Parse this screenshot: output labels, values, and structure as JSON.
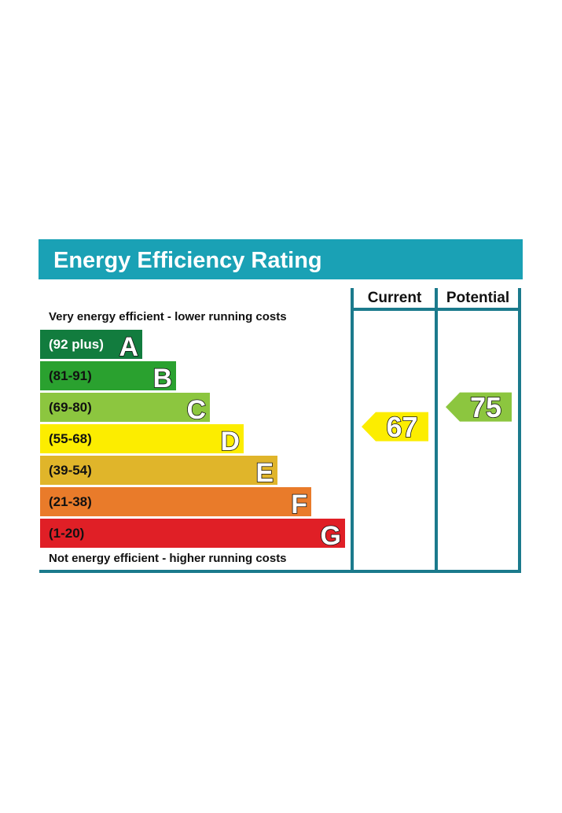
{
  "title": "Energy Efficiency Rating",
  "top_note": "Very energy efficient - lower running costs",
  "bottom_note": "Not energy efficient - higher running costs",
  "columns": {
    "current": "Current",
    "potential": "Potential"
  },
  "colors": {
    "header": "#1aa1b5",
    "frame": "#1b7a8c",
    "A": "#127c3e",
    "B": "#2aa12f",
    "C": "#8cc63f",
    "D": "#fced00",
    "E": "#e0b52a",
    "F": "#e97b2a",
    "G": "#e01f26"
  },
  "chart_data": {
    "type": "bar",
    "categories": [
      "A",
      "B",
      "C",
      "D",
      "E",
      "F",
      "G"
    ],
    "ranges": [
      "(92 plus)",
      "(81-91)",
      "(69-80)",
      "(55-68)",
      "(39-54)",
      "(21-38)",
      "(1-20)"
    ],
    "current": {
      "value": 67,
      "band": "D"
    },
    "potential": {
      "value": 75,
      "band": "C"
    }
  }
}
